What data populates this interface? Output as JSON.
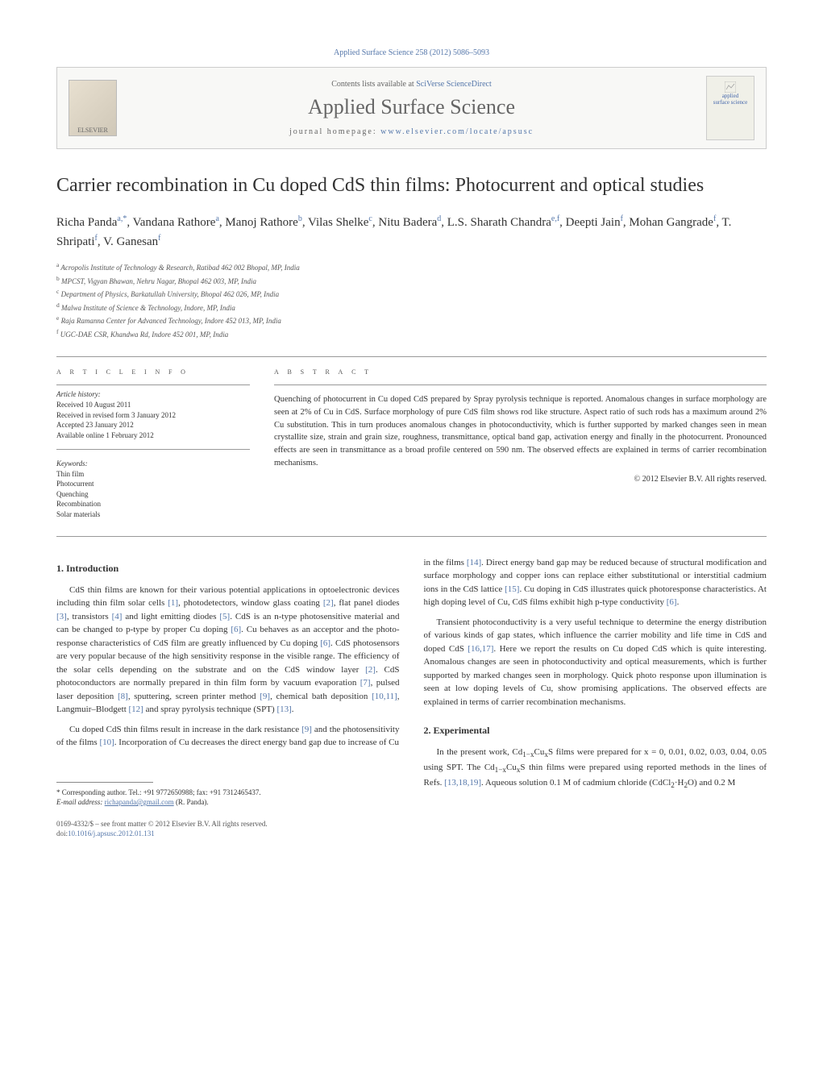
{
  "journal_ref": "Applied Surface Science 258 (2012) 5086–5093",
  "header": {
    "contents_prefix": "Contents lists available at ",
    "contents_link": "SciVerse ScienceDirect",
    "journal_name": "Applied Surface Science",
    "homepage_prefix": "journal homepage: ",
    "homepage_url": "www.elsevier.com/locate/apsusc",
    "elsevier_label": "ELSEVIER",
    "cover_line1": "applied",
    "cover_line2": "surface science"
  },
  "title": "Carrier recombination in Cu doped CdS thin films: Photocurrent and optical studies",
  "authors_html": "Richa Panda<sup>a,*</sup>, Vandana Rathore<sup>a</sup>, Manoj Rathore<sup>b</sup>, Vilas Shelke<sup>c</sup>, Nitu Badera<sup>d</sup>, L.S. Sharath Chandra<sup>e,f</sup>, Deepti Jain<sup>f</sup>, Mohan Gangrade<sup>f</sup>, T. Shripati<sup>f</sup>, V. Ganesan<sup>f</sup>",
  "affiliations": [
    {
      "sup": "a",
      "text": "Acropolis Institute of Technology & Research, Ratibad 462 002 Bhopal, MP, India"
    },
    {
      "sup": "b",
      "text": "MPCST, Vigyan Bhawan, Nehru Nagar, Bhopal 462 003, MP, India"
    },
    {
      "sup": "c",
      "text": "Department of Physics, Barkatullah University, Bhopal 462 026, MP, India"
    },
    {
      "sup": "d",
      "text": "Malwa Institute of Science & Technology, Indore, MP, India"
    },
    {
      "sup": "e",
      "text": "Raja Ramanna Center for Advanced Technology, Indore 452 013, MP, India"
    },
    {
      "sup": "f",
      "text": "UGC-DAE CSR, Khandwa Rd, Indore 452 001, MP, India"
    }
  ],
  "article_info": {
    "label": "A R T I C L E   I N F O",
    "history_label": "Article history:",
    "history": [
      "Received 10 August 2011",
      "Received in revised form 3 January 2012",
      "Accepted 23 January 2012",
      "Available online 1 February 2012"
    ],
    "keywords_label": "Keywords:",
    "keywords": [
      "Thin film",
      "Photocurrent",
      "Quenching",
      "Recombination",
      "Solar materials"
    ]
  },
  "abstract": {
    "label": "A B S T R A C T",
    "text": "Quenching of photocurrent in Cu doped CdS prepared by Spray pyrolysis technique is reported. Anomalous changes in surface morphology are seen at 2% of Cu in CdS. Surface morphology of pure CdS film shows rod like structure. Aspect ratio of such rods has a maximum around 2% Cu substitution. This in turn produces anomalous changes in photoconductivity, which is further supported by marked changes seen in mean crystallite size, strain and grain size, roughness, transmittance, optical band gap, activation energy and finally in the photocurrent. Pronounced effects are seen in transmittance as a broad profile centered on 590 nm. The observed effects are explained in terms of carrier recombination mechanisms.",
    "copyright": "© 2012 Elsevier B.V. All rights reserved."
  },
  "sections": {
    "intro_heading": "1. Introduction",
    "intro_p1_html": "CdS thin films are known for their various potential applications in optoelectronic devices including thin film solar cells <span class='ref'>[1]</span>, photodetectors, window glass coating <span class='ref'>[2]</span>, flat panel diodes <span class='ref'>[3]</span>, transistors <span class='ref'>[4]</span> and light emitting diodes <span class='ref'>[5]</span>. CdS is an n-type photosensitive material and can be changed to p-type by proper Cu doping <span class='ref'>[6]</span>. Cu behaves as an acceptor and the photo-response characteristics of CdS film are greatly influenced by Cu doping <span class='ref'>[6]</span>. CdS photosensors are very popular because of the high sensitivity response in the visible range. The efficiency of the solar cells depending on the substrate and on the CdS window layer <span class='ref'>[2]</span>. CdS photoconductors are normally prepared in thin film form by vacuum evaporation <span class='ref'>[7]</span>, pulsed laser deposition <span class='ref'>[8]</span>, sputtering, screen printer method <span class='ref'>[9]</span>, chemical bath deposition <span class='ref'>[10,11]</span>, Langmuir–Blodgett <span class='ref'>[12]</span> and spray pyrolysis technique (SPT) <span class='ref'>[13]</span>.",
    "intro_p2_html": "Cu doped CdS thin films result in increase in the dark resistance <span class='ref'>[9]</span> and the photosensitivity of the films <span class='ref'>[10]</span>. Incorporation of Cu decreases the direct energy band gap due to increase of Cu",
    "intro_p3_html": "in the films <span class='ref'>[14]</span>. Direct energy band gap may be reduced because of structural modification and surface morphology and copper ions can replace either substitutional or interstitial cadmium ions in the CdS lattice <span class='ref'>[15]</span>. Cu doping in CdS illustrates quick photoresponse characteristics. At high doping level of Cu, CdS films exhibit high p-type conductivity <span class='ref'>[6]</span>.",
    "intro_p4_html": "Transient photoconductivity is a very useful technique to determine the energy distribution of various kinds of gap states, which influence the carrier mobility and life time in CdS and doped CdS <span class='ref'>[16,17]</span>. Here we report the results on Cu doped CdS which is quite interesting. Anomalous changes are seen in photoconductivity and optical measurements, which is further supported by marked changes seen in morphology. Quick photo response upon illumination is seen at low doping levels of Cu, show promising applications. The observed effects are explained in terms of carrier recombination mechanisms.",
    "exp_heading": "2. Experimental",
    "exp_p1_html": "In the present work, Cd<sub>1−x</sub>Cu<sub>x</sub>S films were prepared for x = 0, 0.01, 0.02, 0.03, 0.04, 0.05 using SPT. The Cd<sub>1−x</sub>Cu<sub>x</sub>S thin films were prepared using reported methods in the lines of Refs. <span class='ref'>[13,18,19]</span>. Aqueous solution 0.1 M of cadmium chloride (CdCl<sub>2</sub>·H<sub>2</sub>O) and 0.2 M"
  },
  "footnote": {
    "corr": "* Corresponding author. Tel.: +91 9772650988; fax: +91 7312465437.",
    "email_label": "E-mail address: ",
    "email": "richapanda@gmail.com",
    "email_suffix": " (R. Panda)."
  },
  "bottom": {
    "line1": "0169-4332/$ – see front matter © 2012 Elsevier B.V. All rights reserved.",
    "doi_prefix": "doi:",
    "doi": "10.1016/j.apsusc.2012.01.131"
  },
  "colors": {
    "link": "#5577aa",
    "text": "#333333",
    "muted": "#666666",
    "border": "#cccccc",
    "bg": "#ffffff"
  }
}
